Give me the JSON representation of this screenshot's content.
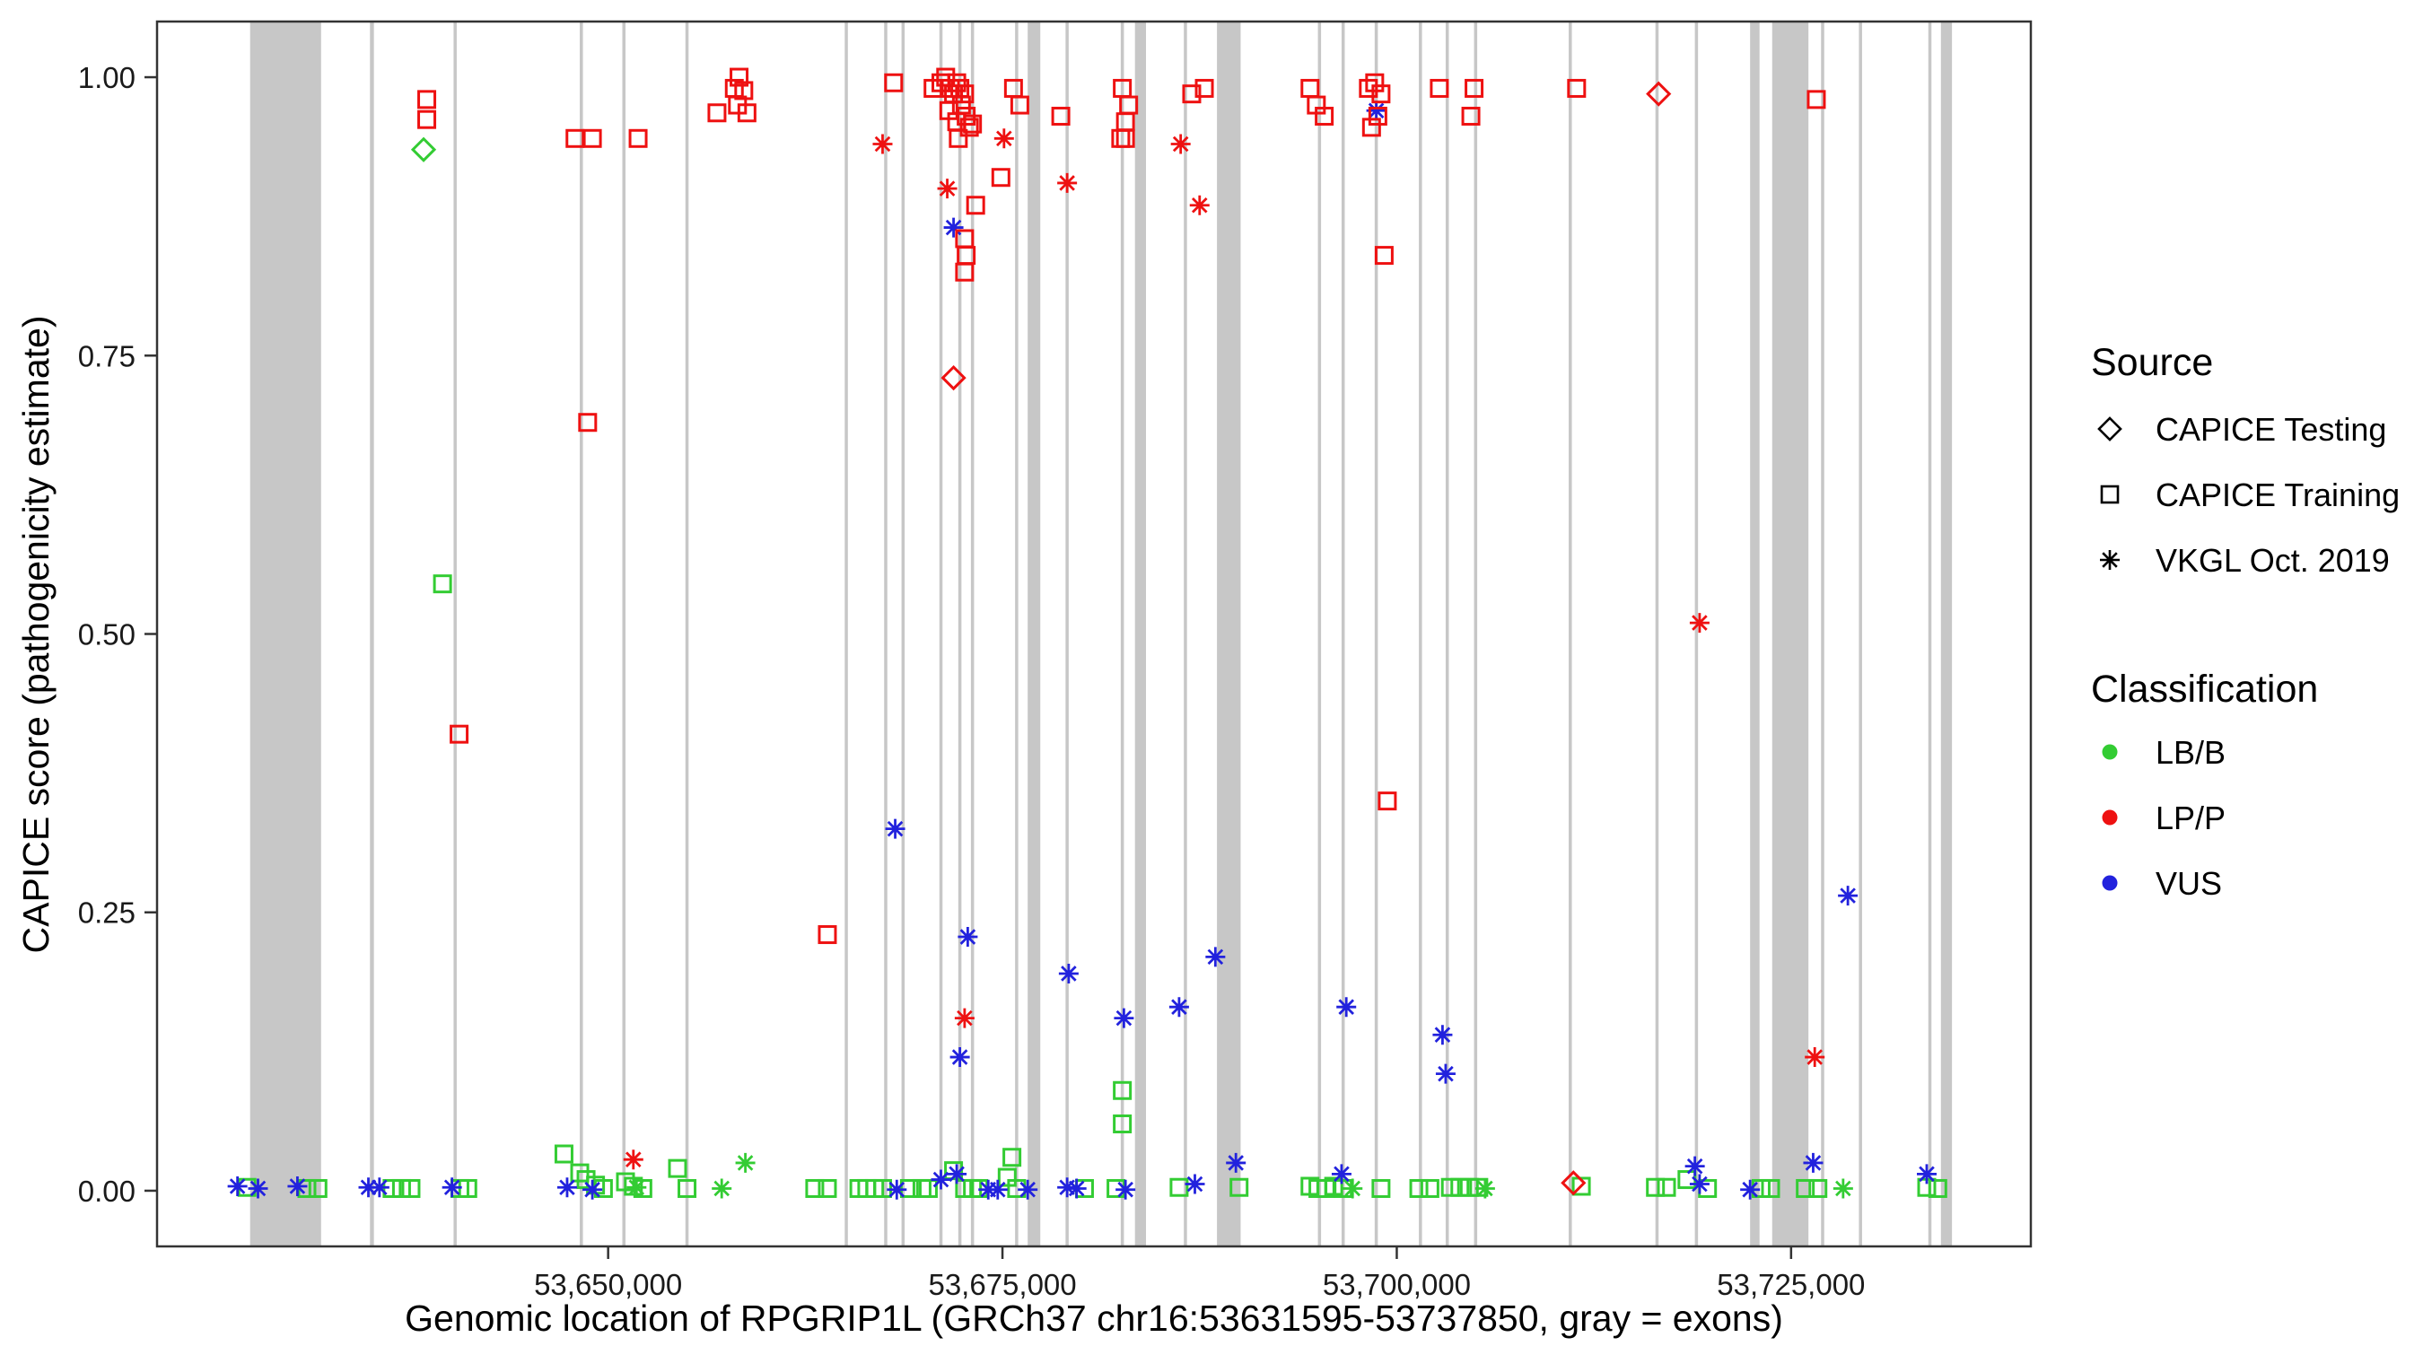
{
  "legend": {
    "source_title": "Source",
    "source_items": [
      {
        "label": "CAPICE Testing",
        "marker": "diamond"
      },
      {
        "label": "CAPICE Training",
        "marker": "square"
      },
      {
        "label": "VKGL Oct. 2019",
        "marker": "asterisk"
      }
    ],
    "classification_title": "Classification",
    "classification_items": [
      {
        "label": "LB/B",
        "color": "#33CC33"
      },
      {
        "label": "LP/P",
        "color": "#EE1111"
      },
      {
        "label": "VUS",
        "color": "#2222DD"
      }
    ]
  },
  "chart_data": {
    "type": "scatter",
    "title": "",
    "xlabel": "Genomic location of RPGRIP1L (GRCh37 chr16:53631595-53737850, gray = exons)",
    "ylabel": "CAPICE score (pathogenicity estimate)",
    "x_domain": [
      53621400,
      53740200
    ],
    "y_domain": [
      -0.05,
      1.05
    ],
    "grid": "off",
    "legend_position": "right",
    "exon_color": "#C7C7C7",
    "x_ticks": [
      {
        "value": 53650000,
        "label": "53,650,000"
      },
      {
        "value": 53675000,
        "label": "53,675,000"
      },
      {
        "value": 53700000,
        "label": "53,700,000"
      },
      {
        "value": 53725000,
        "label": "53,725,000"
      }
    ],
    "y_ticks": [
      {
        "value": 0.0,
        "label": "0.00"
      },
      {
        "value": 0.25,
        "label": "0.25"
      },
      {
        "value": 0.5,
        "label": "0.50"
      },
      {
        "value": 0.75,
        "label": "0.75"
      },
      {
        "value": 1.0,
        "label": "1.00"
      }
    ],
    "exons": [
      [
        53627300,
        53631800
      ],
      [
        53634900,
        53635150
      ],
      [
        53640200,
        53640400
      ],
      [
        53648200,
        53648400
      ],
      [
        53650900,
        53651100
      ],
      [
        53654900,
        53655100
      ],
      [
        53665000,
        53665200
      ],
      [
        53667500,
        53667700
      ],
      [
        53668600,
        53668800
      ],
      [
        53671000,
        53671200
      ],
      [
        53672200,
        53672400
      ],
      [
        53673000,
        53673200
      ],
      [
        53675800,
        53676000
      ],
      [
        53676600,
        53677400
      ],
      [
        53679000,
        53679200
      ],
      [
        53682500,
        53682700
      ],
      [
        53683400,
        53684100
      ],
      [
        53686500,
        53686700
      ],
      [
        53688600,
        53690100
      ],
      [
        53695000,
        53695200
      ],
      [
        53696500,
        53696700
      ],
      [
        53698600,
        53698800
      ],
      [
        53701400,
        53701600
      ],
      [
        53703100,
        53703300
      ],
      [
        53704900,
        53705100
      ],
      [
        53710900,
        53711100
      ],
      [
        53716400,
        53716600
      ],
      [
        53718900,
        53719100
      ],
      [
        53722400,
        53723000
      ],
      [
        53723800,
        53726100
      ],
      [
        53726900,
        53727100
      ],
      [
        53729300,
        53729500
      ],
      [
        53733700,
        53733900
      ],
      [
        53734500,
        53735200
      ]
    ],
    "series": [
      {
        "source": "CAPICE Training",
        "classification": "LB/B",
        "marker": "square",
        "color": "#33CC33",
        "points": [
          [
            53639500,
            0.545
          ],
          [
            53682600,
            0.09
          ],
          [
            53682600,
            0.06
          ],
          [
            53627100,
            0.003
          ],
          [
            53630900,
            0.002
          ],
          [
            53631600,
            0.002
          ],
          [
            53636300,
            0.002
          ],
          [
            53636900,
            0.002
          ],
          [
            53637500,
            0.002
          ],
          [
            53640600,
            0.002
          ],
          [
            53641100,
            0.002
          ],
          [
            53647200,
            0.033
          ],
          [
            53648200,
            0.016
          ],
          [
            53648600,
            0.01
          ],
          [
            53649200,
            0.005
          ],
          [
            53649700,
            0.002
          ],
          [
            53651100,
            0.008
          ],
          [
            53651600,
            0.004
          ],
          [
            53652200,
            0.002
          ],
          [
            53654400,
            0.02
          ],
          [
            53655000,
            0.002
          ],
          [
            53663100,
            0.002
          ],
          [
            53663900,
            0.002
          ],
          [
            53665900,
            0.002
          ],
          [
            53666400,
            0.002
          ],
          [
            53666900,
            0.002
          ],
          [
            53667400,
            0.002
          ],
          [
            53669100,
            0.002
          ],
          [
            53669900,
            0.002
          ],
          [
            53670300,
            0.002
          ],
          [
            53671900,
            0.018
          ],
          [
            53672600,
            0.002
          ],
          [
            53673100,
            0.002
          ],
          [
            53673500,
            0.002
          ],
          [
            53675600,
            0.03
          ],
          [
            53675300,
            0.012
          ],
          [
            53675900,
            0.002
          ],
          [
            53680200,
            0.002
          ],
          [
            53682200,
            0.002
          ],
          [
            53686200,
            0.003
          ],
          [
            53690000,
            0.003
          ],
          [
            53694500,
            0.004
          ],
          [
            53695000,
            0.002
          ],
          [
            53695500,
            0.002
          ],
          [
            53696000,
            0.004
          ],
          [
            53696600,
            0.002
          ],
          [
            53699000,
            0.002
          ],
          [
            53701400,
            0.002
          ],
          [
            53702100,
            0.002
          ],
          [
            53703400,
            0.003
          ],
          [
            53704000,
            0.003
          ],
          [
            53704600,
            0.003
          ],
          [
            53705200,
            0.003
          ],
          [
            53711700,
            0.004
          ],
          [
            53716400,
            0.003
          ],
          [
            53717100,
            0.003
          ],
          [
            53718400,
            0.01
          ],
          [
            53719700,
            0.002
          ],
          [
            53723100,
            0.002
          ],
          [
            53723700,
            0.002
          ],
          [
            53725900,
            0.002
          ],
          [
            53726700,
            0.002
          ],
          [
            53733600,
            0.003
          ],
          [
            53734300,
            0.002
          ]
        ]
      },
      {
        "source": "VKGL Oct. 2019",
        "classification": "LB/B",
        "marker": "asterisk",
        "color": "#33CC33",
        "points": [
          [
            53651800,
            0.003
          ],
          [
            53657200,
            0.002
          ],
          [
            53658700,
            0.025
          ],
          [
            53697200,
            0.002
          ],
          [
            53705600,
            0.002
          ],
          [
            53728300,
            0.002
          ]
        ]
      },
      {
        "source": "VKGL Oct. 2019",
        "classification": "VUS",
        "marker": "asterisk",
        "color": "#2222DD",
        "points": [
          [
            53671900,
            0.865
          ],
          [
            53698700,
            0.97
          ],
          [
            53668200,
            0.325
          ],
          [
            53728600,
            0.265
          ],
          [
            53672800,
            0.228
          ],
          [
            53688500,
            0.21
          ],
          [
            53679200,
            0.195
          ],
          [
            53696800,
            0.165
          ],
          [
            53686200,
            0.165
          ],
          [
            53682700,
            0.155
          ],
          [
            53702900,
            0.14
          ],
          [
            53672300,
            0.12
          ],
          [
            53703100,
            0.105
          ],
          [
            53626500,
            0.004
          ],
          [
            53627800,
            0.002
          ],
          [
            53630300,
            0.004
          ],
          [
            53634800,
            0.003
          ],
          [
            53635500,
            0.003
          ],
          [
            53640100,
            0.003
          ],
          [
            53647400,
            0.003
          ],
          [
            53649000,
            0.001
          ],
          [
            53668300,
            0.001
          ],
          [
            53671100,
            0.01
          ],
          [
            53672100,
            0.015
          ],
          [
            53674100,
            0.001
          ],
          [
            53674700,
            0.001
          ],
          [
            53676600,
            0.001
          ],
          [
            53679100,
            0.003
          ],
          [
            53679700,
            0.002
          ],
          [
            53682800,
            0.001
          ],
          [
            53687200,
            0.006
          ],
          [
            53689800,
            0.025
          ],
          [
            53696500,
            0.015
          ],
          [
            53718900,
            0.022
          ],
          [
            53719200,
            0.006
          ],
          [
            53722400,
            0.001
          ],
          [
            53726400,
            0.025
          ],
          [
            53733600,
            0.015
          ]
        ]
      },
      {
        "source": "CAPICE Training",
        "classification": "LP/P",
        "marker": "square",
        "color": "#EE1111",
        "points": [
          [
            53638500,
            0.98
          ],
          [
            53638500,
            0.962
          ],
          [
            53647900,
            0.945
          ],
          [
            53649000,
            0.945
          ],
          [
            53651900,
            0.945
          ],
          [
            53656900,
            0.968
          ],
          [
            53658000,
            0.99
          ],
          [
            53658300,
            1.0
          ],
          [
            53658600,
            0.988
          ],
          [
            53658200,
            0.975
          ],
          [
            53658800,
            0.968
          ],
          [
            53668100,
            0.995
          ],
          [
            53670600,
            0.99
          ],
          [
            53671100,
            0.995
          ],
          [
            53671400,
            1.0
          ],
          [
            53671700,
            0.99
          ],
          [
            53671900,
            0.985
          ],
          [
            53672100,
            0.995
          ],
          [
            53672300,
            0.99
          ],
          [
            53672600,
            0.985
          ],
          [
            53672400,
            0.975
          ],
          [
            53672700,
            0.965
          ],
          [
            53672900,
            0.955
          ],
          [
            53672100,
            0.96
          ],
          [
            53671600,
            0.97
          ],
          [
            53673100,
            0.958
          ],
          [
            53672200,
            0.945
          ],
          [
            53673300,
            0.885
          ],
          [
            53672600,
            0.855
          ],
          [
            53672700,
            0.84
          ],
          [
            53672600,
            0.825
          ],
          [
            53674900,
            0.91
          ],
          [
            53675700,
            0.99
          ],
          [
            53676100,
            0.975
          ],
          [
            53678700,
            0.965
          ],
          [
            53682600,
            0.99
          ],
          [
            53683000,
            0.975
          ],
          [
            53682800,
            0.96
          ],
          [
            53682500,
            0.945
          ],
          [
            53682800,
            0.945
          ],
          [
            53687000,
            0.985
          ],
          [
            53687800,
            0.99
          ],
          [
            53694500,
            0.99
          ],
          [
            53694900,
            0.975
          ],
          [
            53695400,
            0.965
          ],
          [
            53698200,
            0.99
          ],
          [
            53698600,
            0.995
          ],
          [
            53699000,
            0.985
          ],
          [
            53698800,
            0.965
          ],
          [
            53698400,
            0.955
          ],
          [
            53699200,
            0.84
          ],
          [
            53702700,
            0.99
          ],
          [
            53704700,
            0.965
          ],
          [
            53704900,
            0.99
          ],
          [
            53711400,
            0.99
          ],
          [
            53726600,
            0.98
          ],
          [
            53648700,
            0.69
          ],
          [
            53640550,
            0.41
          ],
          [
            53699400,
            0.35
          ],
          [
            53663900,
            0.23
          ]
        ]
      },
      {
        "source": "VKGL Oct. 2019",
        "classification": "LP/P",
        "marker": "asterisk",
        "color": "#EE1111",
        "points": [
          [
            53667400,
            0.94
          ],
          [
            53671500,
            0.9
          ],
          [
            53675100,
            0.945
          ],
          [
            53679100,
            0.905
          ],
          [
            53686300,
            0.94
          ],
          [
            53687500,
            0.885
          ],
          [
            53719200,
            0.51
          ],
          [
            53672600,
            0.155
          ],
          [
            53726500,
            0.12
          ],
          [
            53651600,
            0.028
          ]
        ]
      },
      {
        "source": "CAPICE Testing",
        "classification": "LB/B",
        "marker": "diamond",
        "color": "#33CC33",
        "points": [
          [
            53638300,
            0.935
          ]
        ]
      },
      {
        "source": "CAPICE Testing",
        "classification": "LP/P",
        "marker": "diamond",
        "color": "#EE1111",
        "points": [
          [
            53671900,
            0.73
          ],
          [
            53716600,
            0.985
          ],
          [
            53711200,
            0.007
          ]
        ]
      }
    ]
  }
}
